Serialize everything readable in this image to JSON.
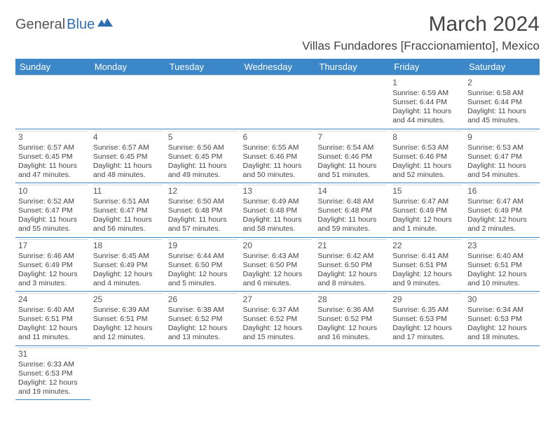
{
  "logo": {
    "part1": "General",
    "part2": "Blue"
  },
  "title": "March 2024",
  "location": "Villas Fundadores [Fraccionamiento], Mexico",
  "colors": {
    "header_bg": "#3b87c8",
    "header_fg": "#ffffff",
    "rule": "#3b87c8",
    "text": "#444444"
  },
  "weekdays": [
    "Sunday",
    "Monday",
    "Tuesday",
    "Wednesday",
    "Thursday",
    "Friday",
    "Saturday"
  ],
  "weeks": [
    [
      null,
      null,
      null,
      null,
      null,
      {
        "n": "1",
        "sr": "Sunrise: 6:59 AM",
        "ss": "Sunset: 6:44 PM",
        "d1": "Daylight: 11 hours",
        "d2": "and 44 minutes."
      },
      {
        "n": "2",
        "sr": "Sunrise: 6:58 AM",
        "ss": "Sunset: 6:44 PM",
        "d1": "Daylight: 11 hours",
        "d2": "and 45 minutes."
      }
    ],
    [
      {
        "n": "3",
        "sr": "Sunrise: 6:57 AM",
        "ss": "Sunset: 6:45 PM",
        "d1": "Daylight: 11 hours",
        "d2": "and 47 minutes."
      },
      {
        "n": "4",
        "sr": "Sunrise: 6:57 AM",
        "ss": "Sunset: 6:45 PM",
        "d1": "Daylight: 11 hours",
        "d2": "and 48 minutes."
      },
      {
        "n": "5",
        "sr": "Sunrise: 6:56 AM",
        "ss": "Sunset: 6:45 PM",
        "d1": "Daylight: 11 hours",
        "d2": "and 49 minutes."
      },
      {
        "n": "6",
        "sr": "Sunrise: 6:55 AM",
        "ss": "Sunset: 6:46 PM",
        "d1": "Daylight: 11 hours",
        "d2": "and 50 minutes."
      },
      {
        "n": "7",
        "sr": "Sunrise: 6:54 AM",
        "ss": "Sunset: 6:46 PM",
        "d1": "Daylight: 11 hours",
        "d2": "and 51 minutes."
      },
      {
        "n": "8",
        "sr": "Sunrise: 6:53 AM",
        "ss": "Sunset: 6:46 PM",
        "d1": "Daylight: 11 hours",
        "d2": "and 52 minutes."
      },
      {
        "n": "9",
        "sr": "Sunrise: 6:53 AM",
        "ss": "Sunset: 6:47 PM",
        "d1": "Daylight: 11 hours",
        "d2": "and 54 minutes."
      }
    ],
    [
      {
        "n": "10",
        "sr": "Sunrise: 6:52 AM",
        "ss": "Sunset: 6:47 PM",
        "d1": "Daylight: 11 hours",
        "d2": "and 55 minutes."
      },
      {
        "n": "11",
        "sr": "Sunrise: 6:51 AM",
        "ss": "Sunset: 6:47 PM",
        "d1": "Daylight: 11 hours",
        "d2": "and 56 minutes."
      },
      {
        "n": "12",
        "sr": "Sunrise: 6:50 AM",
        "ss": "Sunset: 6:48 PM",
        "d1": "Daylight: 11 hours",
        "d2": "and 57 minutes."
      },
      {
        "n": "13",
        "sr": "Sunrise: 6:49 AM",
        "ss": "Sunset: 6:48 PM",
        "d1": "Daylight: 11 hours",
        "d2": "and 58 minutes."
      },
      {
        "n": "14",
        "sr": "Sunrise: 6:48 AM",
        "ss": "Sunset: 6:48 PM",
        "d1": "Daylight: 11 hours",
        "d2": "and 59 minutes."
      },
      {
        "n": "15",
        "sr": "Sunrise: 6:47 AM",
        "ss": "Sunset: 6:49 PM",
        "d1": "Daylight: 12 hours",
        "d2": "and 1 minute."
      },
      {
        "n": "16",
        "sr": "Sunrise: 6:47 AM",
        "ss": "Sunset: 6:49 PM",
        "d1": "Daylight: 12 hours",
        "d2": "and 2 minutes."
      }
    ],
    [
      {
        "n": "17",
        "sr": "Sunrise: 6:46 AM",
        "ss": "Sunset: 6:49 PM",
        "d1": "Daylight: 12 hours",
        "d2": "and 3 minutes."
      },
      {
        "n": "18",
        "sr": "Sunrise: 6:45 AM",
        "ss": "Sunset: 6:49 PM",
        "d1": "Daylight: 12 hours",
        "d2": "and 4 minutes."
      },
      {
        "n": "19",
        "sr": "Sunrise: 6:44 AM",
        "ss": "Sunset: 6:50 PM",
        "d1": "Daylight: 12 hours",
        "d2": "and 5 minutes."
      },
      {
        "n": "20",
        "sr": "Sunrise: 6:43 AM",
        "ss": "Sunset: 6:50 PM",
        "d1": "Daylight: 12 hours",
        "d2": "and 6 minutes."
      },
      {
        "n": "21",
        "sr": "Sunrise: 6:42 AM",
        "ss": "Sunset: 6:50 PM",
        "d1": "Daylight: 12 hours",
        "d2": "and 8 minutes."
      },
      {
        "n": "22",
        "sr": "Sunrise: 6:41 AM",
        "ss": "Sunset: 6:51 PM",
        "d1": "Daylight: 12 hours",
        "d2": "and 9 minutes."
      },
      {
        "n": "23",
        "sr": "Sunrise: 6:40 AM",
        "ss": "Sunset: 6:51 PM",
        "d1": "Daylight: 12 hours",
        "d2": "and 10 minutes."
      }
    ],
    [
      {
        "n": "24",
        "sr": "Sunrise: 6:40 AM",
        "ss": "Sunset: 6:51 PM",
        "d1": "Daylight: 12 hours",
        "d2": "and 11 minutes."
      },
      {
        "n": "25",
        "sr": "Sunrise: 6:39 AM",
        "ss": "Sunset: 6:51 PM",
        "d1": "Daylight: 12 hours",
        "d2": "and 12 minutes."
      },
      {
        "n": "26",
        "sr": "Sunrise: 6:38 AM",
        "ss": "Sunset: 6:52 PM",
        "d1": "Daylight: 12 hours",
        "d2": "and 13 minutes."
      },
      {
        "n": "27",
        "sr": "Sunrise: 6:37 AM",
        "ss": "Sunset: 6:52 PM",
        "d1": "Daylight: 12 hours",
        "d2": "and 15 minutes."
      },
      {
        "n": "28",
        "sr": "Sunrise: 6:36 AM",
        "ss": "Sunset: 6:52 PM",
        "d1": "Daylight: 12 hours",
        "d2": "and 16 minutes."
      },
      {
        "n": "29",
        "sr": "Sunrise: 6:35 AM",
        "ss": "Sunset: 6:53 PM",
        "d1": "Daylight: 12 hours",
        "d2": "and 17 minutes."
      },
      {
        "n": "30",
        "sr": "Sunrise: 6:34 AM",
        "ss": "Sunset: 6:53 PM",
        "d1": "Daylight: 12 hours",
        "d2": "and 18 minutes."
      }
    ],
    [
      {
        "n": "31",
        "sr": "Sunrise: 6:33 AM",
        "ss": "Sunset: 6:53 PM",
        "d1": "Daylight: 12 hours",
        "d2": "and 19 minutes."
      },
      null,
      null,
      null,
      null,
      null,
      null
    ]
  ]
}
